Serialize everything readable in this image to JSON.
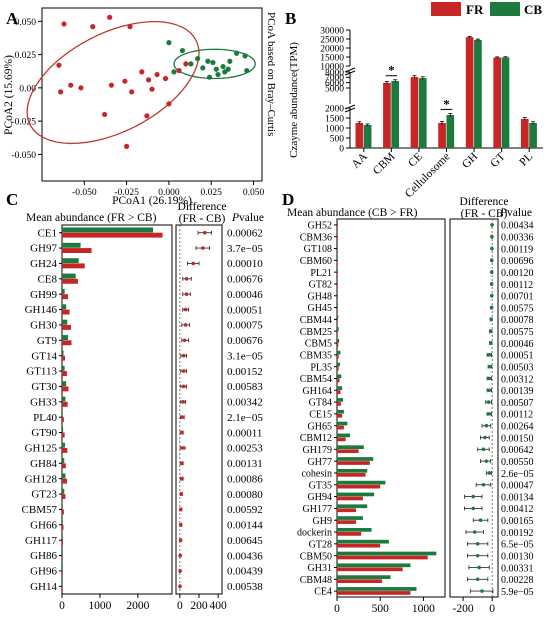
{
  "colors": {
    "FR": "#c82626",
    "CB": "#1c7a3c",
    "ellipse_FR": "#c0392b",
    "ellipse_CB": "#1c7a3c"
  },
  "panels": {
    "A": {
      "letter": "A"
    },
    "B": {
      "letter": "B"
    },
    "C": {
      "letter": "C"
    },
    "D": {
      "letter": "D"
    }
  },
  "legend": {
    "fr": "FR",
    "cb": "CB"
  },
  "chart_data": [
    {
      "panel": "A",
      "type": "scatter",
      "side_title": "PCoA based on Bray–Curtis",
      "xlabel": "PCoA1 (26.19%)",
      "ylabel": "PCoA2 (15.69%)",
      "xlim": [
        -0.075,
        0.055
      ],
      "ylim": [
        -0.07,
        0.06
      ],
      "x_ticks": [
        "-0.050",
        "-0.025",
        "0.000",
        "0.025",
        "0.050"
      ],
      "x_tick_values": [
        -0.05,
        -0.025,
        0.0,
        0.025,
        0.05
      ],
      "y_ticks": [
        "0.050",
        "0.025",
        "0.00",
        "-0.025",
        "-0.050"
      ],
      "y_tick_values": [
        0.05,
        0.025,
        0.0,
        -0.025,
        -0.05
      ],
      "series": [
        {
          "name": "FR",
          "points": [
            [
              -0.062,
              0.048
            ],
            [
              -0.045,
              0.046
            ],
            [
              -0.035,
              0.053
            ],
            [
              -0.023,
              0.046
            ],
            [
              -0.065,
              0.017
            ],
            [
              -0.058,
              0.002
            ],
            [
              -0.064,
              -0.003
            ],
            [
              -0.052,
              0.0
            ],
            [
              -0.034,
              0.002
            ],
            [
              -0.026,
              0.005
            ],
            [
              -0.022,
              -0.003
            ],
            [
              -0.016,
              0.012
            ],
            [
              -0.012,
              0.006
            ],
            [
              -0.01,
              -0.001
            ],
            [
              -0.007,
              0.01
            ],
            [
              0.0,
              -0.012
            ],
            [
              -0.013,
              -0.021
            ],
            [
              -0.025,
              -0.044
            ],
            [
              -0.038,
              -0.02
            ],
            [
              0.006,
              0.013
            ],
            [
              0.01,
              0.018
            ],
            [
              -0.002,
              0.007
            ]
          ]
        },
        {
          "name": "CB",
          "points": [
            [
              0.0,
              0.034
            ],
            [
              0.008,
              0.028
            ],
            [
              0.013,
              0.018
            ],
            [
              0.017,
              0.022
            ],
            [
              0.02,
              0.015
            ],
            [
              0.023,
              0.02
            ],
            [
              0.026,
              0.019
            ],
            [
              0.029,
              0.01
            ],
            [
              0.032,
              0.016
            ],
            [
              0.035,
              0.014
            ],
            [
              0.04,
              0.026
            ],
            [
              0.046,
              0.013
            ],
            [
              0.024,
              0.008
            ],
            [
              0.036,
              0.02
            ],
            [
              0.028,
              0.014
            ],
            [
              0.045,
              0.024
            ],
            [
              0.003,
              0.012
            ],
            [
              0.033,
              0.012
            ]
          ]
        }
      ],
      "ellipses": [
        {
          "name": "FR",
          "cx": -0.033,
          "cy": 0.004,
          "rx": 0.055,
          "ry": 0.037,
          "angle_deg": -27
        },
        {
          "name": "CB",
          "cx": 0.027,
          "cy": 0.018,
          "rx": 0.024,
          "ry": 0.011,
          "angle_deg": 0
        }
      ]
    },
    {
      "panel": "B",
      "type": "bar",
      "ylabel": "Czayme abundance(TPM)",
      "categories": [
        "AA",
        "CBM",
        "CE",
        "Cellulosome",
        "GH",
        "GT",
        "PL"
      ],
      "series": [
        {
          "name": "FR",
          "values": [
            1250,
            5950,
            7050,
            1250,
            26000,
            14700,
            1450
          ],
          "errors": [
            60,
            250,
            250,
            80,
            400,
            350,
            70
          ]
        },
        {
          "name": "CB",
          "values": [
            1150,
            6300,
            6850,
            1650,
            24500,
            14800,
            1250
          ],
          "errors": [
            50,
            250,
            250,
            80,
            450,
            350,
            60
          ]
        }
      ],
      "broken_axis": {
        "lower": {
          "range": [
            0,
            2000
          ],
          "ticks": [
            0,
            500,
            1000,
            1500,
            2000
          ]
        },
        "middle": {
          "range": [
            2000,
            8000
          ],
          "ticks": [
            5000,
            6000,
            7000,
            8000
          ]
        },
        "upper": {
          "range": [
            10000,
            30000
          ],
          "ticks": [
            10000,
            15000,
            20000,
            25000,
            30000
          ]
        }
      },
      "significance": [
        {
          "category": "CBM",
          "label": "*"
        },
        {
          "category": "Cellulosome",
          "label": "*"
        }
      ]
    },
    {
      "panel": "C",
      "type": "bar",
      "orientation": "horizontal",
      "header_left": "Mean abundance (FR > CB)",
      "header_mid": "Difference\n(FR - CB)",
      "header_right": "Pvalue",
      "categories": [
        "CE1",
        "GH97",
        "GH24",
        "CE8",
        "GH99",
        "GH146",
        "GH30",
        "GT9",
        "GT14",
        "GT113",
        "GT30",
        "GH33",
        "PL40",
        "GT90",
        "GH125",
        "GH84",
        "GH128",
        "GT23",
        "CBM57",
        "GH66",
        "GH117",
        "GH86",
        "GH96",
        "GH14"
      ],
      "series": [
        {
          "name": "CB",
          "values": [
            2400,
            490,
            440,
            360,
            70,
            110,
            140,
            160,
            40,
            70,
            110,
            90,
            20,
            30,
            80,
            60,
            90,
            60,
            20,
            15,
            8,
            5,
            3,
            2
          ]
        },
        {
          "name": "FR",
          "values": [
            2650,
            780,
            600,
            420,
            160,
            200,
            240,
            250,
            80,
            130,
            170,
            150,
            50,
            70,
            140,
            100,
            130,
            90,
            50,
            40,
            25,
            12,
            8,
            6
          ]
        }
      ],
      "x_ticks": [
        0,
        1000,
        2000
      ],
      "xlim": [
        0,
        2900
      ],
      "difference": {
        "values": [
          260,
          240,
          140,
          70,
          70,
          60,
          60,
          50,
          40,
          40,
          40,
          35,
          25,
          20,
          30,
          20,
          20,
          15,
          10,
          10,
          8,
          4,
          3,
          2
        ],
        "ci_low": [
          190,
          170,
          80,
          30,
          30,
          30,
          20,
          20,
          10,
          10,
          10,
          10,
          5,
          5,
          5,
          5,
          5,
          5,
          2,
          2,
          2,
          0,
          0,
          0
        ],
        "ci_high": [
          330,
          310,
          200,
          120,
          110,
          90,
          100,
          90,
          70,
          70,
          70,
          60,
          45,
          35,
          55,
          35,
          35,
          25,
          20,
          20,
          14,
          8,
          6,
          4
        ],
        "x_ticks": [
          0,
          200,
          400
        ],
        "xlim": [
          -40,
          440
        ]
      },
      "pvalues": [
        "0.00062",
        "3.7e−05",
        "0.00010",
        "0.00676",
        "0.00046",
        "0.00051",
        "0.00075",
        "0.00676",
        "3.1e−05",
        "0.00152",
        "0.00583",
        "0.00342",
        "2.1e−05",
        "0.00011",
        "0.00253",
        "0.00131",
        "0.00086",
        "0.00080",
        "0.00592",
        "0.00144",
        "0.00645",
        "0.00436",
        "0.00439",
        "0.00538"
      ]
    },
    {
      "panel": "D",
      "type": "bar",
      "orientation": "horizontal",
      "header_left": "Mean abundance (CB > FR)",
      "header_mid": "Difference\n(FR - CB)",
      "header_right": "Pvalue",
      "categories": [
        "GH52",
        "CBM36",
        "GT108",
        "CBM60",
        "PL21",
        "GT82",
        "GH48",
        "GH45",
        "CBM44",
        "CBM25",
        "CBM5",
        "CBM35",
        "PL35",
        "CBM54",
        "GH164",
        "GT84",
        "CE15",
        "GH65",
        "CBM12",
        "GH179",
        "GH77",
        "cohesin",
        "GT35",
        "GH94",
        "GH177",
        "GH9",
        "dockerin",
        "GT28",
        "CBM50",
        "GH31",
        "CBM48",
        "CE4"
      ],
      "series": [
        {
          "name": "CB",
          "values": [
            2,
            3,
            4,
            5,
            6,
            8,
            8,
            10,
            15,
            20,
            25,
            40,
            35,
            50,
            60,
            70,
            80,
            120,
            150,
            310,
            420,
            350,
            560,
            430,
            350,
            300,
            400,
            600,
            1150,
            850,
            620,
            920
          ]
        },
        {
          "name": "FR",
          "values": [
            1,
            1,
            2,
            2,
            3,
            4,
            5,
            6,
            8,
            10,
            15,
            20,
            20,
            30,
            40,
            45,
            60,
            80,
            100,
            250,
            380,
            330,
            500,
            300,
            220,
            220,
            280,
            500,
            1050,
            760,
            520,
            850
          ]
        }
      ],
      "x_ticks": [
        0,
        500,
        1000
      ],
      "xlim": [
        0,
        1250
      ],
      "difference": {
        "values": [
          -1,
          -2,
          -2,
          -3,
          -3,
          -4,
          -3,
          -4,
          -7,
          -10,
          -10,
          -20,
          -15,
          -20,
          -20,
          -25,
          -20,
          -40,
          -50,
          -60,
          -40,
          -20,
          -60,
          -130,
          -130,
          -80,
          -120,
          -100,
          -100,
          -90,
          -100,
          -70
        ],
        "ci_low": [
          -2,
          -4,
          -4,
          -6,
          -6,
          -8,
          -6,
          -8,
          -12,
          -18,
          -18,
          -35,
          -28,
          -35,
          -35,
          -45,
          -35,
          -70,
          -80,
          -100,
          -80,
          -40,
          -110,
          -190,
          -190,
          -130,
          -180,
          -170,
          -170,
          -160,
          -170,
          -150
        ],
        "ci_high": [
          0,
          0,
          0,
          0,
          0,
          0,
          0,
          0,
          -2,
          -2,
          -2,
          -5,
          -2,
          -5,
          -5,
          -5,
          -5,
          -10,
          -20,
          -20,
          -10,
          -5,
          -10,
          -70,
          -70,
          -30,
          -60,
          -30,
          -30,
          -20,
          -30,
          5
        ],
        "x_ticks": [
          -200,
          0
        ],
        "xlim": [
          -290,
          40
        ]
      },
      "pvalues": [
        "0.00434",
        "0.00336",
        "0.00119",
        "0.00696",
        "0.00120",
        "0.00112",
        "0.00701",
        "0.00575",
        "0.00078",
        "0.00575",
        "0.00046",
        "0.00051",
        "0.00503",
        "0.00312",
        "0.00139",
        "0.00507",
        "0.00112",
        "0.00264",
        "0.00150",
        "0.00642",
        "0.00550",
        "2.6e−05",
        "0.00047",
        "0.00134",
        "0.00412",
        "0.00165",
        "0.00192",
        "6.5e−05",
        "0.00130",
        "0.00331",
        "0.00228",
        "5.9e−05"
      ]
    }
  ]
}
